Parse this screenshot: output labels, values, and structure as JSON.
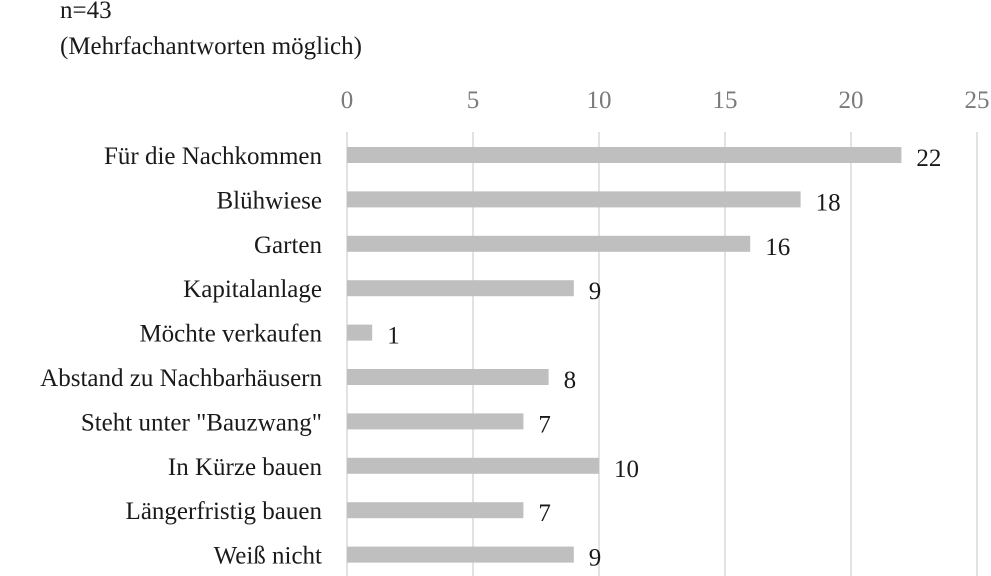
{
  "notes": {
    "sample_size": "n=43",
    "multiple_answers": "(Mehrfachantworten möglich)"
  },
  "colors": {
    "bar": "#bfbfbf",
    "grid": "#d9d9d9",
    "tick_text": "#7a7a7a",
    "text": "#1a1a1a"
  },
  "chart_data": {
    "type": "bar",
    "orientation": "horizontal",
    "title": "",
    "xlabel": "",
    "ylabel": "",
    "xlim": [
      0,
      25
    ],
    "x_ticks": [
      0,
      5,
      10,
      15,
      20,
      25
    ],
    "x_axis_position": "top",
    "grid": true,
    "legend": "none",
    "categories": [
      "Für die Nachkommen",
      "Blühwiese",
      "Garten",
      "Kapitalanlage",
      "Möchte verkaufen",
      "Abstand zu Nachbarhäusern",
      "Steht unter \"Bauzwang\"",
      "In Kürze bauen",
      "Längerfristig bauen",
      "Weiß nicht"
    ],
    "values": [
      22,
      18,
      16,
      9,
      1,
      8,
      7,
      10,
      7,
      9
    ]
  }
}
